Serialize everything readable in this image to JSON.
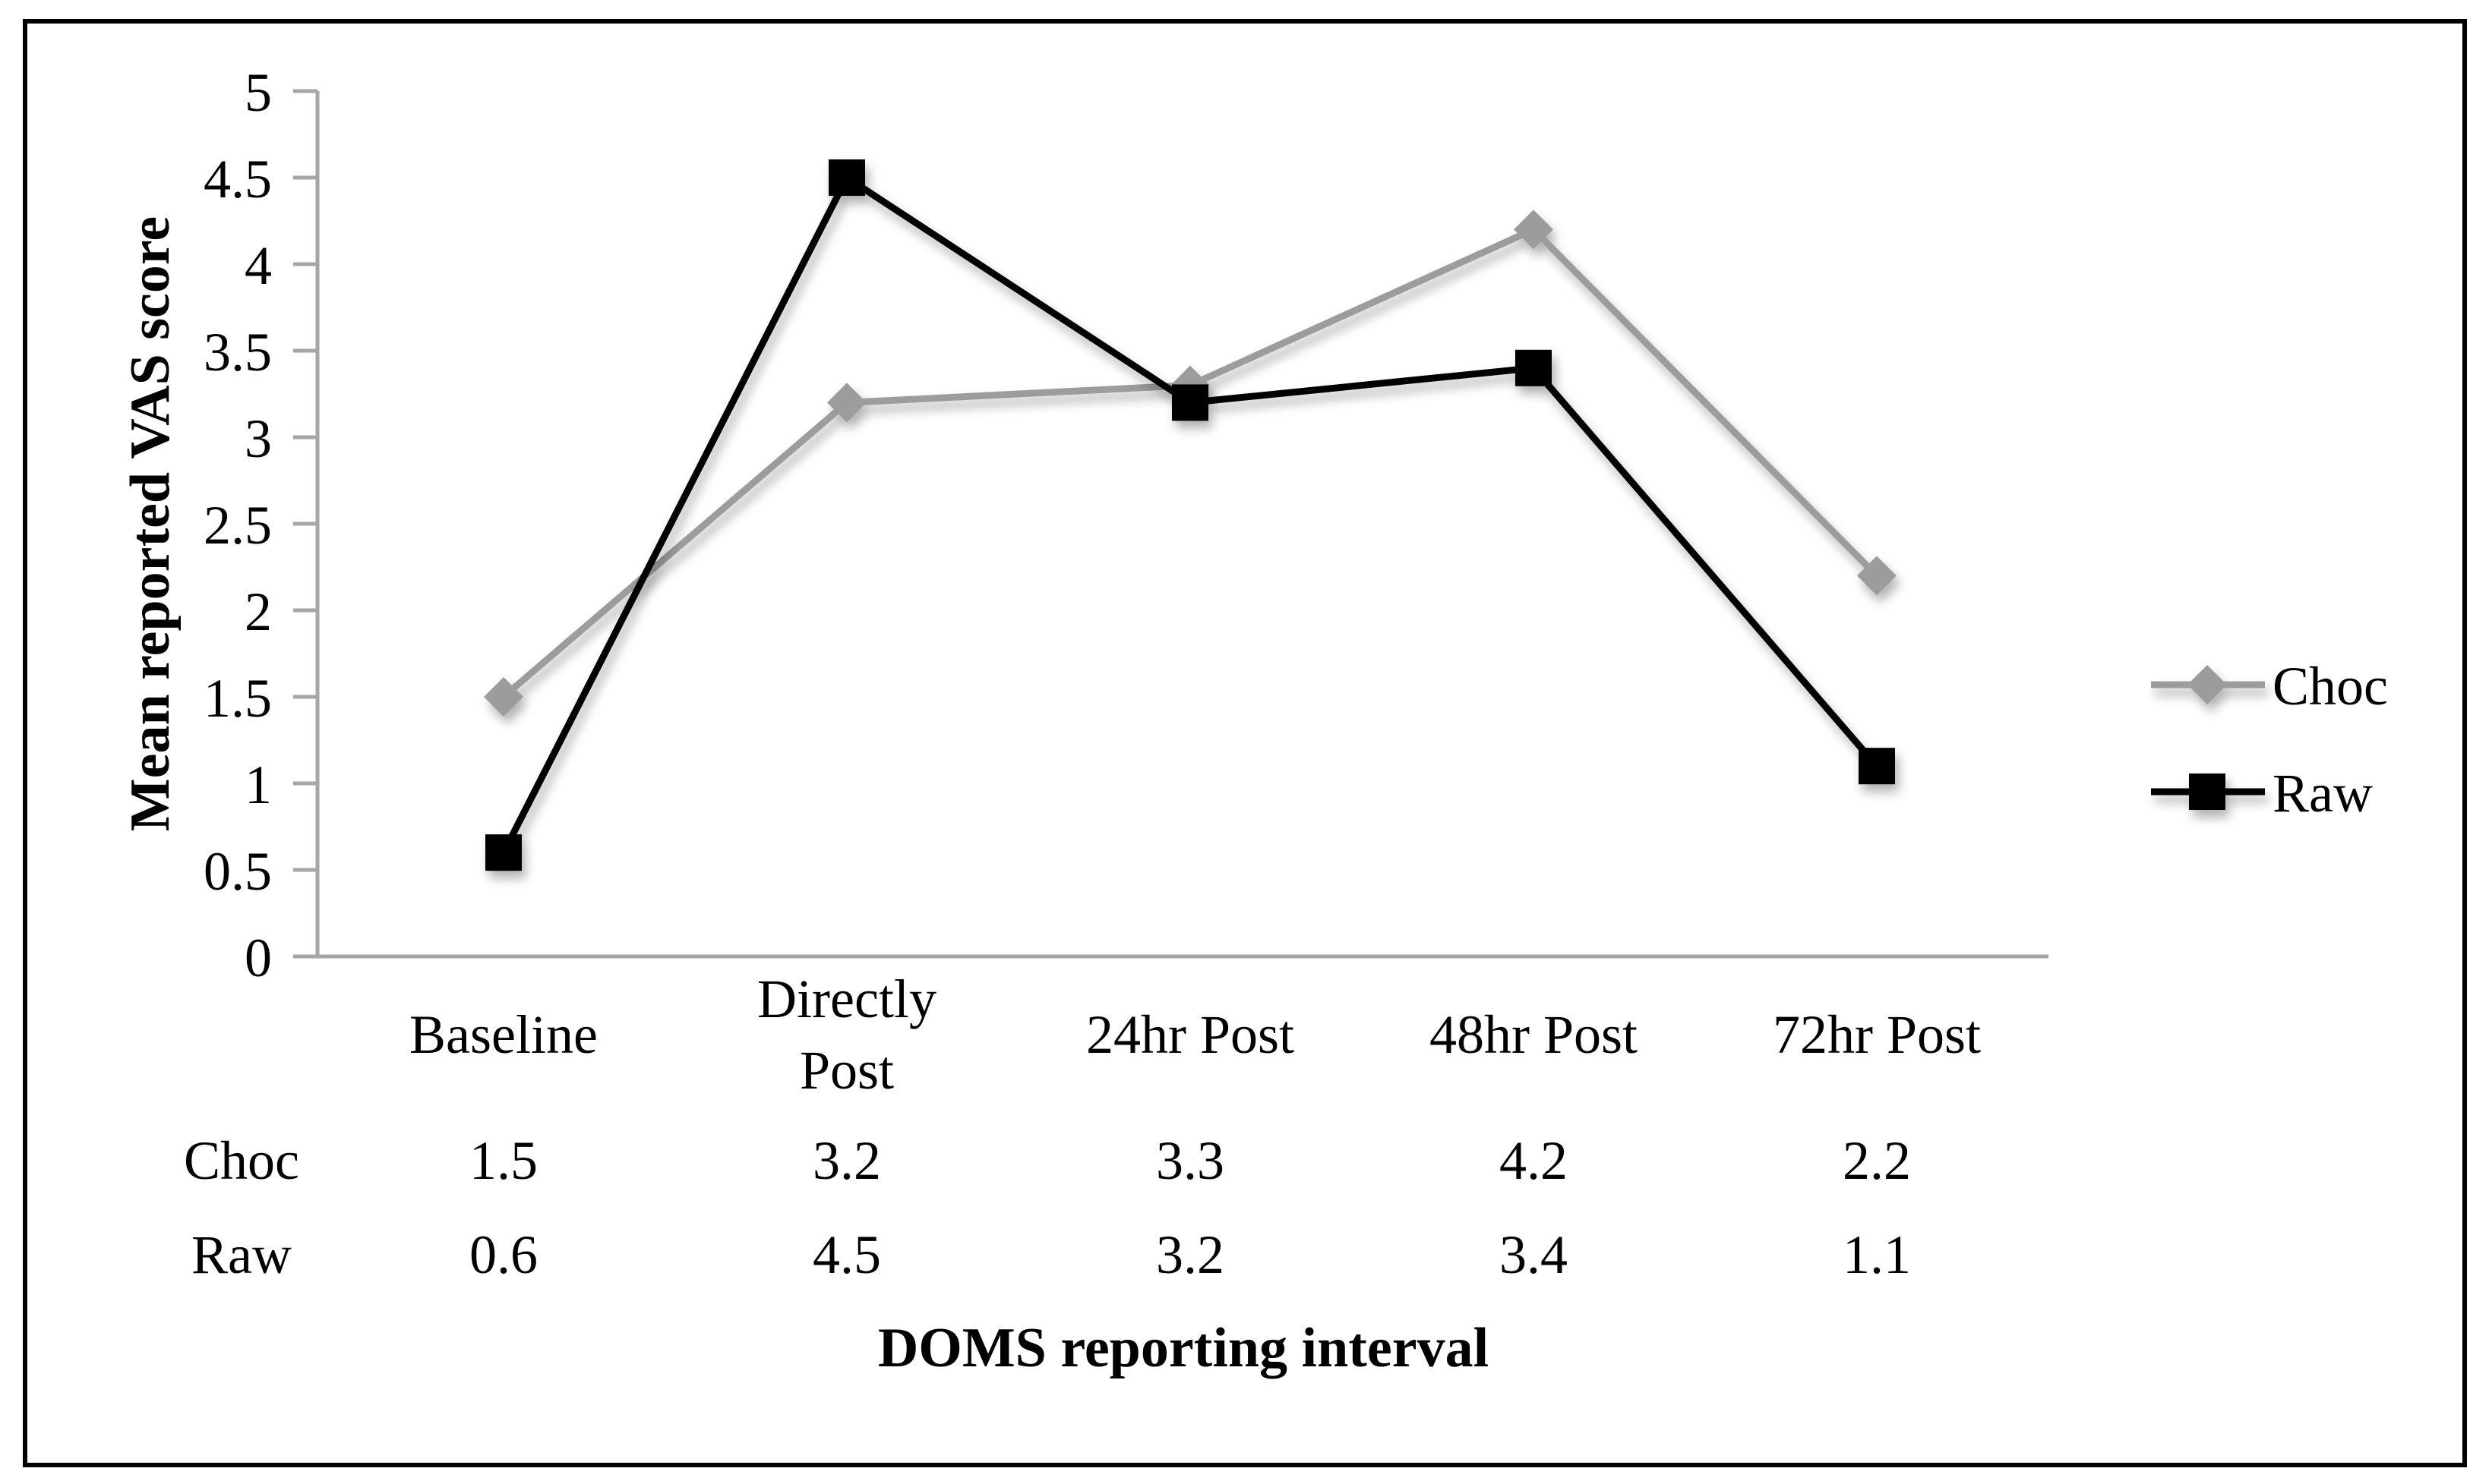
{
  "figure": {
    "type_label": "line chart with data table",
    "background": "#ffffff",
    "border_color": "#000000"
  },
  "chart_data": {
    "type": "line",
    "title": "",
    "xlabel": "DOMS reporting interval",
    "ylabel": "Mean reported VAS score",
    "categories": [
      "Baseline",
      "Directly Post",
      "24hr Post",
      "48hr Post",
      "72hr Post"
    ],
    "categories_display": [
      [
        "Baseline"
      ],
      [
        "Directly",
        "Post"
      ],
      [
        "24hr Post"
      ],
      [
        "48hr Post"
      ],
      [
        "72hr Post"
      ]
    ],
    "series": [
      {
        "name": "Choc",
        "values": [
          1.5,
          3.2,
          3.3,
          4.2,
          2.2
        ],
        "color": "#9C9C9C",
        "marker": "diamond"
      },
      {
        "name": "Raw",
        "values": [
          0.6,
          4.5,
          3.2,
          3.4,
          1.1
        ],
        "color": "#000000",
        "marker": "square"
      }
    ],
    "y_axis": {
      "min": 0,
      "max": 5,
      "step": 0.5,
      "tick_labels": [
        "0",
        "0.5",
        "1",
        "1.5",
        "2",
        "2.5",
        "3",
        "3.5",
        "4",
        "4.5",
        "5"
      ]
    },
    "ylim": [
      0,
      5
    ],
    "grid": false,
    "axis_color": "#A6A6A6",
    "legend": {
      "position": "right",
      "entries": [
        "Choc",
        "Raw"
      ]
    },
    "data_table": {
      "rows": [
        {
          "label": "Choc",
          "values": [
            "1.5",
            "3.2",
            "3.3",
            "4.2",
            "2.2"
          ]
        },
        {
          "label": "Raw",
          "values": [
            "0.6",
            "4.5",
            "3.2",
            "3.4",
            "1.1"
          ]
        }
      ]
    }
  }
}
